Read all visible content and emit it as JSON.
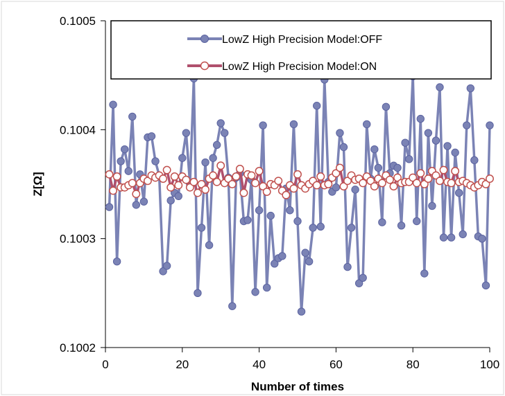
{
  "chart_data": {
    "type": "line",
    "title": "",
    "xlabel": "Number of times",
    "ylabel": "Z[Ω]",
    "xlim": [
      0,
      100
    ],
    "ylim": [
      0.1002,
      0.1005
    ],
    "xticks": [
      0,
      20,
      40,
      60,
      80,
      100
    ],
    "xtick_labels": [
      "0",
      "20",
      "40",
      "60",
      "80",
      "100"
    ],
    "yticks": [
      0.1002,
      0.1003,
      0.1004,
      0.1005
    ],
    "ytick_labels": [
      "0.1002",
      "0.1003",
      "0.1004",
      "0.1005"
    ],
    "grid": false,
    "legend_position": "top-right",
    "x": [
      1,
      2,
      3,
      4,
      5,
      6,
      7,
      8,
      9,
      10,
      11,
      12,
      13,
      14,
      15,
      16,
      17,
      18,
      19,
      20,
      21,
      22,
      23,
      24,
      25,
      26,
      27,
      28,
      29,
      30,
      31,
      32,
      33,
      34,
      35,
      36,
      37,
      38,
      39,
      40,
      41,
      42,
      43,
      44,
      45,
      46,
      47,
      48,
      49,
      50,
      51,
      52,
      53,
      54,
      55,
      56,
      57,
      58,
      59,
      60,
      61,
      62,
      63,
      64,
      65,
      66,
      67,
      68,
      69,
      70,
      71,
      72,
      73,
      74,
      75,
      76,
      77,
      78,
      79,
      80,
      81,
      82,
      83,
      84,
      85,
      86,
      87,
      88,
      89,
      90,
      91,
      92,
      93,
      94,
      95,
      96,
      97,
      98,
      99,
      100
    ],
    "series": [
      {
        "name": "LowZ High Precision Model:OFF",
        "color": "#7b83b5",
        "marker": "filled-circle",
        "values": [
          0.100329,
          0.100423,
          0.100279,
          0.100371,
          0.100382,
          0.100362,
          0.100412,
          0.100331,
          0.100359,
          0.100334,
          0.100393,
          0.100394,
          0.100371,
          0.100358,
          0.10027,
          0.100275,
          0.100335,
          0.100342,
          0.100339,
          0.100374,
          0.100397,
          0.10035,
          0.100447,
          0.10025,
          0.10031,
          0.10037,
          0.100294,
          0.100374,
          0.100386,
          0.100406,
          0.100397,
          0.100356,
          0.100238,
          0.100356,
          0.10036,
          0.100316,
          0.100317,
          0.100354,
          0.100251,
          0.100326,
          0.100404,
          0.100255,
          0.100321,
          0.100277,
          0.100282,
          0.100284,
          0.100346,
          0.100326,
          0.100405,
          0.100316,
          0.100233,
          0.100287,
          0.100279,
          0.10031,
          0.100422,
          0.100311,
          0.100446,
          0.100352,
          0.100343,
          0.100347,
          0.100397,
          0.100384,
          0.100274,
          0.10031,
          0.100345,
          0.100259,
          0.100264,
          0.100405,
          0.100355,
          0.100382,
          0.100365,
          0.100315,
          0.100421,
          0.10036,
          0.100367,
          0.100365,
          0.100312,
          0.100388,
          0.100373,
          0.100449,
          0.100316,
          0.10041,
          0.100268,
          0.100397,
          0.10033,
          0.10039,
          0.100439,
          0.100301,
          0.100385,
          0.100301,
          0.100379,
          0.100342,
          0.100304,
          0.100404,
          0.100438,
          0.100372,
          0.100302,
          0.1003,
          0.100257,
          0.100404
        ]
      },
      {
        "name": "LowZ High Precision Model:ON",
        "color": "#b0506d",
        "marker": "open-circle",
        "values": [
          0.100359,
          0.100344,
          0.100357,
          0.100347,
          0.100347,
          0.100349,
          0.100351,
          0.100341,
          0.100351,
          0.100355,
          0.100353,
          0.100358,
          0.100356,
          0.100358,
          0.100355,
          0.100363,
          0.100347,
          0.100357,
          0.100349,
          0.100357,
          0.100354,
          0.100347,
          0.100352,
          0.100342,
          0.10035,
          0.100345,
          0.100355,
          0.100358,
          0.100352,
          0.100367,
          0.100351,
          0.100355,
          0.10035,
          0.100357,
          0.100364,
          0.100342,
          0.100359,
          0.100358,
          0.100351,
          0.100362,
          0.100348,
          0.100343,
          0.10035,
          0.100349,
          0.100353,
          0.100344,
          0.10034,
          0.100349,
          0.100346,
          0.100359,
          0.100349,
          0.100346,
          0.10035,
          0.100353,
          0.100349,
          0.100357,
          0.100349,
          0.10035,
          0.100356,
          0.10036,
          0.100365,
          0.100348,
          0.100353,
          0.100358,
          0.100354,
          0.100355,
          0.100351,
          0.100357,
          0.100353,
          0.100348,
          0.100355,
          0.100351,
          0.100358,
          0.100354,
          0.100348,
          0.100356,
          0.100351,
          0.100352,
          0.100352,
          0.100356,
          0.100351,
          0.10036,
          0.10035,
          0.100355,
          0.100362,
          0.100358,
          0.100353,
          0.100363,
          0.100352,
          0.100351,
          0.100362,
          0.100352,
          0.100353,
          0.100351,
          0.100349,
          0.100347,
          0.100349,
          0.100352,
          0.10035,
          0.100355
        ]
      }
    ]
  }
}
